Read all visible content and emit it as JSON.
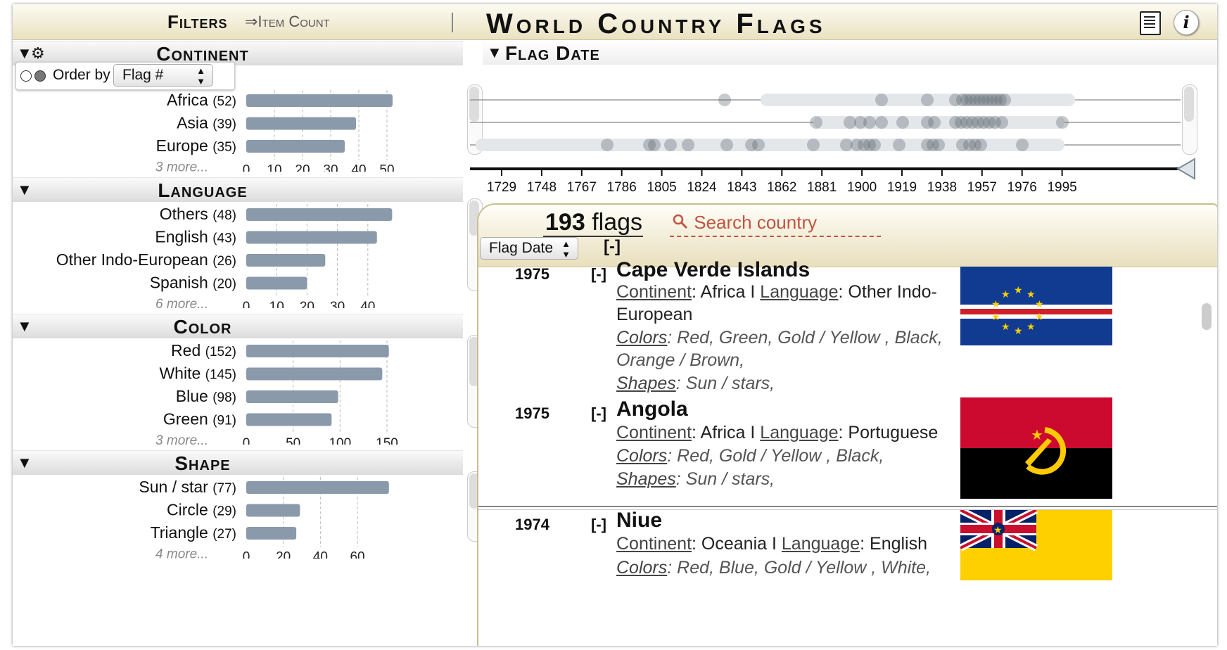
{
  "header": {
    "filters": "Filters",
    "item_count": "⇒Item Count",
    "title": "World Country Flags"
  },
  "order_by": {
    "label": "Order by",
    "value": "Flag #"
  },
  "facets": {
    "continent": {
      "title": "Continent",
      "rows": [
        {
          "label": "Africa",
          "count": "(52)",
          "value": 52
        },
        {
          "label": "Asia",
          "count": "(39)",
          "value": 39
        },
        {
          "label": "Europe",
          "count": "(35)",
          "value": 35
        }
      ],
      "more": "3 more...",
      "ticks": [
        "0",
        "10",
        "20",
        "30",
        "40",
        "50"
      ],
      "max": 52
    },
    "language": {
      "title": "Language",
      "rows": [
        {
          "label": "Others",
          "count": "(48)",
          "value": 48
        },
        {
          "label": "English",
          "count": "(43)",
          "value": 43
        },
        {
          "label": "Other Indo-European",
          "count": "(26)",
          "value": 26
        },
        {
          "label": "Spanish",
          "count": "(20)",
          "value": 20
        }
      ],
      "more": "6 more...",
      "ticks": [
        "0",
        "10",
        "20",
        "30",
        "40"
      ],
      "max": 48
    },
    "color": {
      "title": "Color",
      "rows": [
        {
          "label": "Red",
          "count": "(152)",
          "value": 152
        },
        {
          "label": "White",
          "count": "(145)",
          "value": 145
        },
        {
          "label": "Blue",
          "count": "(98)",
          "value": 98
        },
        {
          "label": "Green",
          "count": "(91)",
          "value": 91
        }
      ],
      "more": "3 more...",
      "ticks": [
        "0",
        "50",
        "100",
        "150"
      ],
      "max": 152
    },
    "shape": {
      "title": "Shape",
      "rows": [
        {
          "label": "Sun / star",
          "count": "(77)",
          "value": 77
        },
        {
          "label": "Circle",
          "count": "(29)",
          "value": 29
        },
        {
          "label": "Triangle",
          "count": "(27)",
          "value": 27
        }
      ],
      "more": "4 more...",
      "ticks": [
        "0",
        "20",
        "40",
        "60"
      ],
      "max": 77
    }
  },
  "timeline": {
    "title": "Flag Date",
    "ticks": [
      "1729",
      "1748",
      "1767",
      "1786",
      "1805",
      "1824",
      "1843",
      "1862",
      "1881",
      "1900",
      "1919",
      "1938",
      "1957",
      "1976",
      "1995"
    ]
  },
  "results": {
    "count_num": "193",
    "count_word": "flags",
    "search_placeholder": "Search country",
    "sort_value": "Flag Date",
    "collapse": "[-]",
    "items": [
      {
        "year": "1975",
        "toggle": "[-]",
        "name": "Cape Verde Islands",
        "continent_key": "Continent",
        "continent": ": Africa",
        "language_key": "Language",
        "language": ": Other Indo-",
        "language_cont": "European",
        "colors_key": "Colors",
        "colors": ": Red,  Green,  Gold / Yellow ,  Black,",
        "colors_cont": "Orange / Brown,",
        "shapes_key": "Shapes",
        "shapes": ": Sun / stars,",
        "sep": " I "
      },
      {
        "year": "1975",
        "toggle": "[-]",
        "name": "Angola",
        "continent_key": "Continent",
        "continent": ": Africa",
        "language_key": "Language",
        "language": ": Portuguese",
        "colors_key": "Colors",
        "colors": ": Red,  Gold / Yellow ,  Black,",
        "shapes_key": "Shapes",
        "shapes": ": Sun / stars,",
        "sep": " I "
      },
      {
        "year": "1974",
        "toggle": "[-]",
        "name": "Niue",
        "continent_key": "Continent",
        "continent": ": Oceania",
        "language_key": "Language",
        "language": ": English",
        "colors_key": "Colors",
        "colors": ": Red,  Blue,  Gold / Yellow ,  White,",
        "sep": " I "
      }
    ]
  },
  "colors": {
    "bar": "#8a9aab",
    "accent": "#c1533f",
    "gold": "#c9bd8d"
  }
}
